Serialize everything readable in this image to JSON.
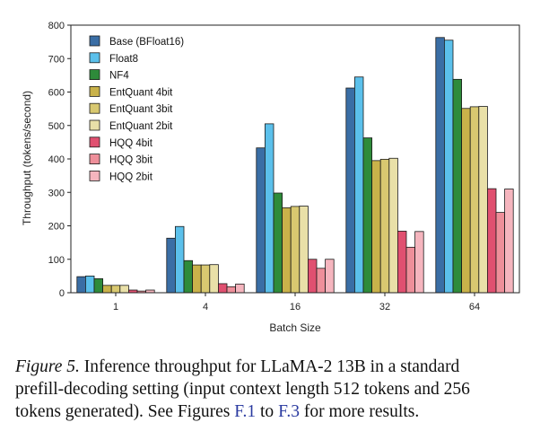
{
  "chart_data": {
    "type": "bar",
    "title": "",
    "xlabel": "Batch Size",
    "ylabel": "Throughput (tokens/second)",
    "ylim": [
      0,
      800
    ],
    "yticks": [
      "0",
      "100",
      "200",
      "300",
      "400",
      "500",
      "600",
      "700",
      "800"
    ],
    "grid": false,
    "legend_position": "top-left",
    "categories": [
      "1",
      "4",
      "16",
      "32",
      "64"
    ],
    "series": [
      {
        "name": "Base (BFloat16)",
        "color": "#3a6ea5",
        "values": [
          48,
          163,
          433,
          612,
          763
        ]
      },
      {
        "name": "Float8",
        "color": "#5bc0eb",
        "values": [
          50,
          198,
          505,
          645,
          755
        ]
      },
      {
        "name": "NF4",
        "color": "#2e8b3a",
        "values": [
          42,
          96,
          298,
          463,
          638
        ]
      },
      {
        "name": "EntQuant 4bit",
        "color": "#c9b24a",
        "values": [
          22,
          83,
          254,
          395,
          551
        ]
      },
      {
        "name": "EntQuant 3bit",
        "color": "#d8c870",
        "values": [
          22,
          83,
          258,
          399,
          556
        ]
      },
      {
        "name": "EntQuant 2bit",
        "color": "#e9e0a8",
        "values": [
          22,
          84,
          259,
          402,
          557
        ]
      },
      {
        "name": "HQQ 4bit",
        "color": "#e05070",
        "values": [
          8,
          27,
          100,
          184,
          311
        ]
      },
      {
        "name": "HQQ 3bit",
        "color": "#ee8f9a",
        "values": [
          5,
          18,
          73,
          136,
          240
        ]
      },
      {
        "name": "HQQ 2bit",
        "color": "#f5b5be",
        "values": [
          8,
          26,
          100,
          183,
          310
        ]
      }
    ]
  },
  "caption": {
    "label": "Figure 5.",
    "line1": "Inference throughput for LLaMA-2 13B in a standard",
    "line2": "prefill-decoding setting (input context length 512 tokens and 256",
    "line3_a": "tokens generated). See Figures",
    "ref1": "F.1",
    "line3_b": "to",
    "ref2": "F.3",
    "line3_c": "for more results."
  }
}
